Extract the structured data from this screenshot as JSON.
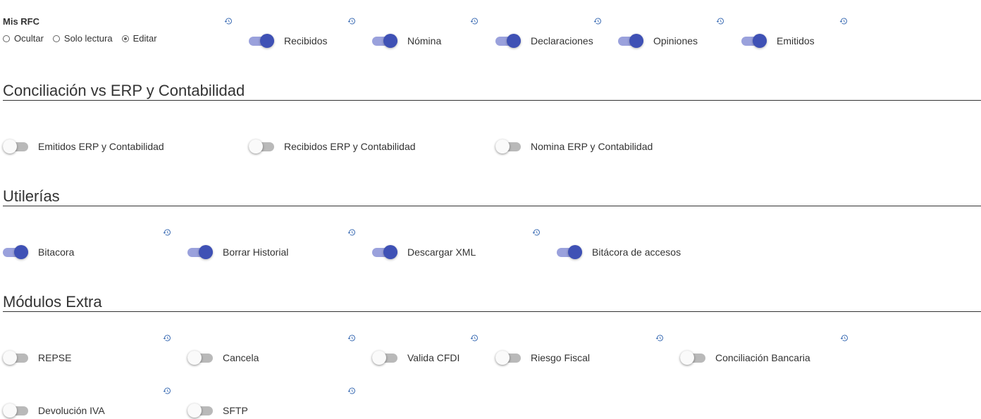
{
  "mis_rfc": {
    "title": "Mis RFC",
    "options": [
      {
        "label": "Ocultar",
        "checked": false
      },
      {
        "label": "Solo lectura",
        "checked": false
      },
      {
        "label": "Editar",
        "checked": true
      }
    ],
    "toggles": [
      {
        "label": "Recibidos",
        "on": true
      },
      {
        "label": "Nómina",
        "on": true
      },
      {
        "label": "Declaraciones",
        "on": true
      },
      {
        "label": "Opiniones",
        "on": true
      },
      {
        "label": "Emitidos",
        "on": true
      }
    ]
  },
  "conciliacion": {
    "title": "Conciliación vs ERP y Contabilidad",
    "toggles": [
      {
        "label": "Emitidos ERP y Contabilidad",
        "on": false
      },
      {
        "label": "Recibidos ERP y Contabilidad",
        "on": false
      },
      {
        "label": "Nomina ERP y Contabilidad",
        "on": false
      }
    ]
  },
  "utilerias": {
    "title": "Utilerías",
    "toggles": [
      {
        "label": "Bitacora",
        "on": true
      },
      {
        "label": "Borrar Historial",
        "on": true
      },
      {
        "label": "Descargar XML",
        "on": true
      },
      {
        "label": "Bitácora de accesos",
        "on": true
      }
    ]
  },
  "modulos_extra": {
    "title": "Módulos Extra",
    "toggles": [
      {
        "label": "REPSE",
        "on": false
      },
      {
        "label": "Cancela",
        "on": false
      },
      {
        "label": "Valida CFDI",
        "on": false
      },
      {
        "label": "Riesgo Fiscal",
        "on": false
      },
      {
        "label": "Conciliación Bancaria",
        "on": false
      },
      {
        "label": "Devolución IVA",
        "on": false
      },
      {
        "label": "SFTP",
        "on": false
      }
    ]
  },
  "colors": {
    "accent": "#3f51b5",
    "accent_track": "#9aa1dc",
    "off_track": "#b9b9b9",
    "history_icon": "#3f6fb5"
  },
  "icons": {
    "history": "history-icon"
  }
}
